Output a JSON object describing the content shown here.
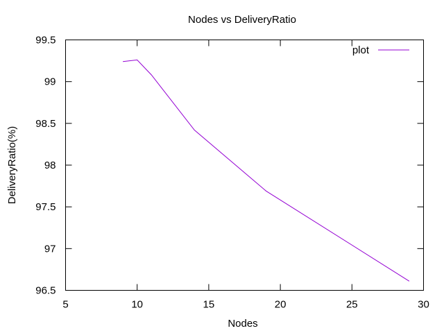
{
  "chart_data": {
    "type": "line",
    "title": "Nodes vs DeliveryRatio",
    "xlabel": "Nodes",
    "ylabel": "DeliveryRatio(%)",
    "xlim": [
      5,
      30
    ],
    "ylim": [
      96.5,
      99.5
    ],
    "xticks": [
      5,
      10,
      15,
      20,
      25,
      30
    ],
    "yticks": [
      96.5,
      97,
      97.5,
      98,
      98.5,
      99,
      99.5
    ],
    "xtick_labels": [
      "5",
      "10",
      "15",
      "20",
      "25",
      "30"
    ],
    "ytick_labels": [
      "96.5",
      "97",
      "97.5",
      "98",
      "98.5",
      "99",
      "99.5"
    ],
    "grid": false,
    "legend_position": "top-right",
    "series": [
      {
        "name": "plot",
        "color": "#9400d3",
        "x": [
          9,
          10,
          11,
          14,
          19,
          29
        ],
        "y": [
          99.24,
          99.26,
          99.08,
          98.42,
          97.69,
          96.61
        ]
      }
    ]
  }
}
